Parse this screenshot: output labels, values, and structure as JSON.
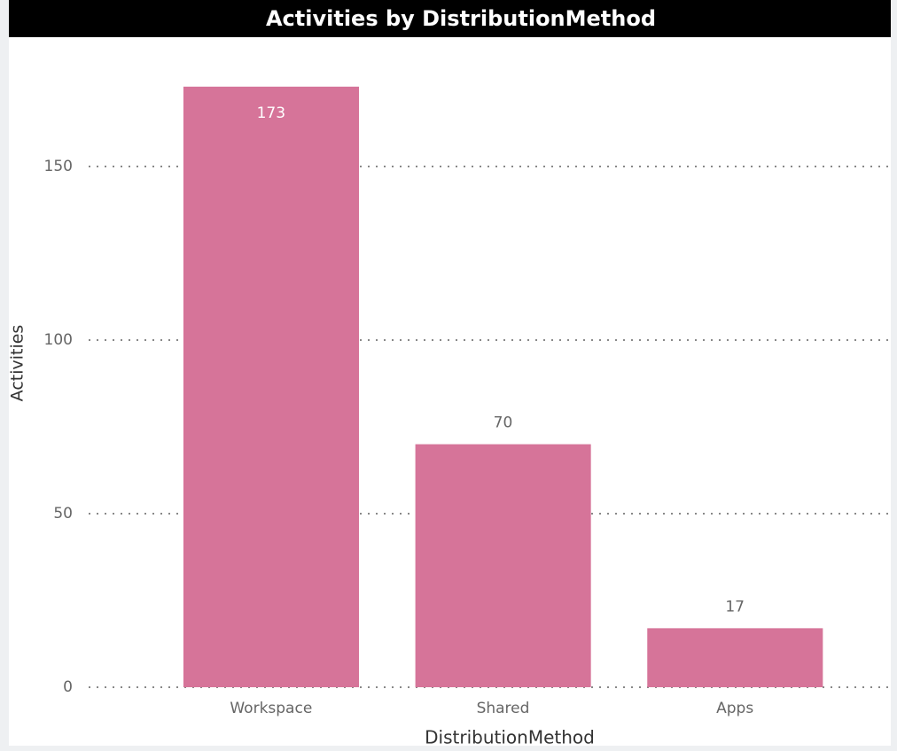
{
  "chart_data": {
    "type": "bar",
    "title": "Activities by DistributionMethod",
    "x_label": "DistributionMethod",
    "y_label": "Activities",
    "categories": [
      "Workspace",
      "Shared",
      "Apps"
    ],
    "values": [
      173,
      70,
      17
    ],
    "color": "#d67499",
    "ylim": [
      0,
      185
    ],
    "yticks": [
      0,
      50,
      100,
      150
    ],
    "grid": true
  }
}
